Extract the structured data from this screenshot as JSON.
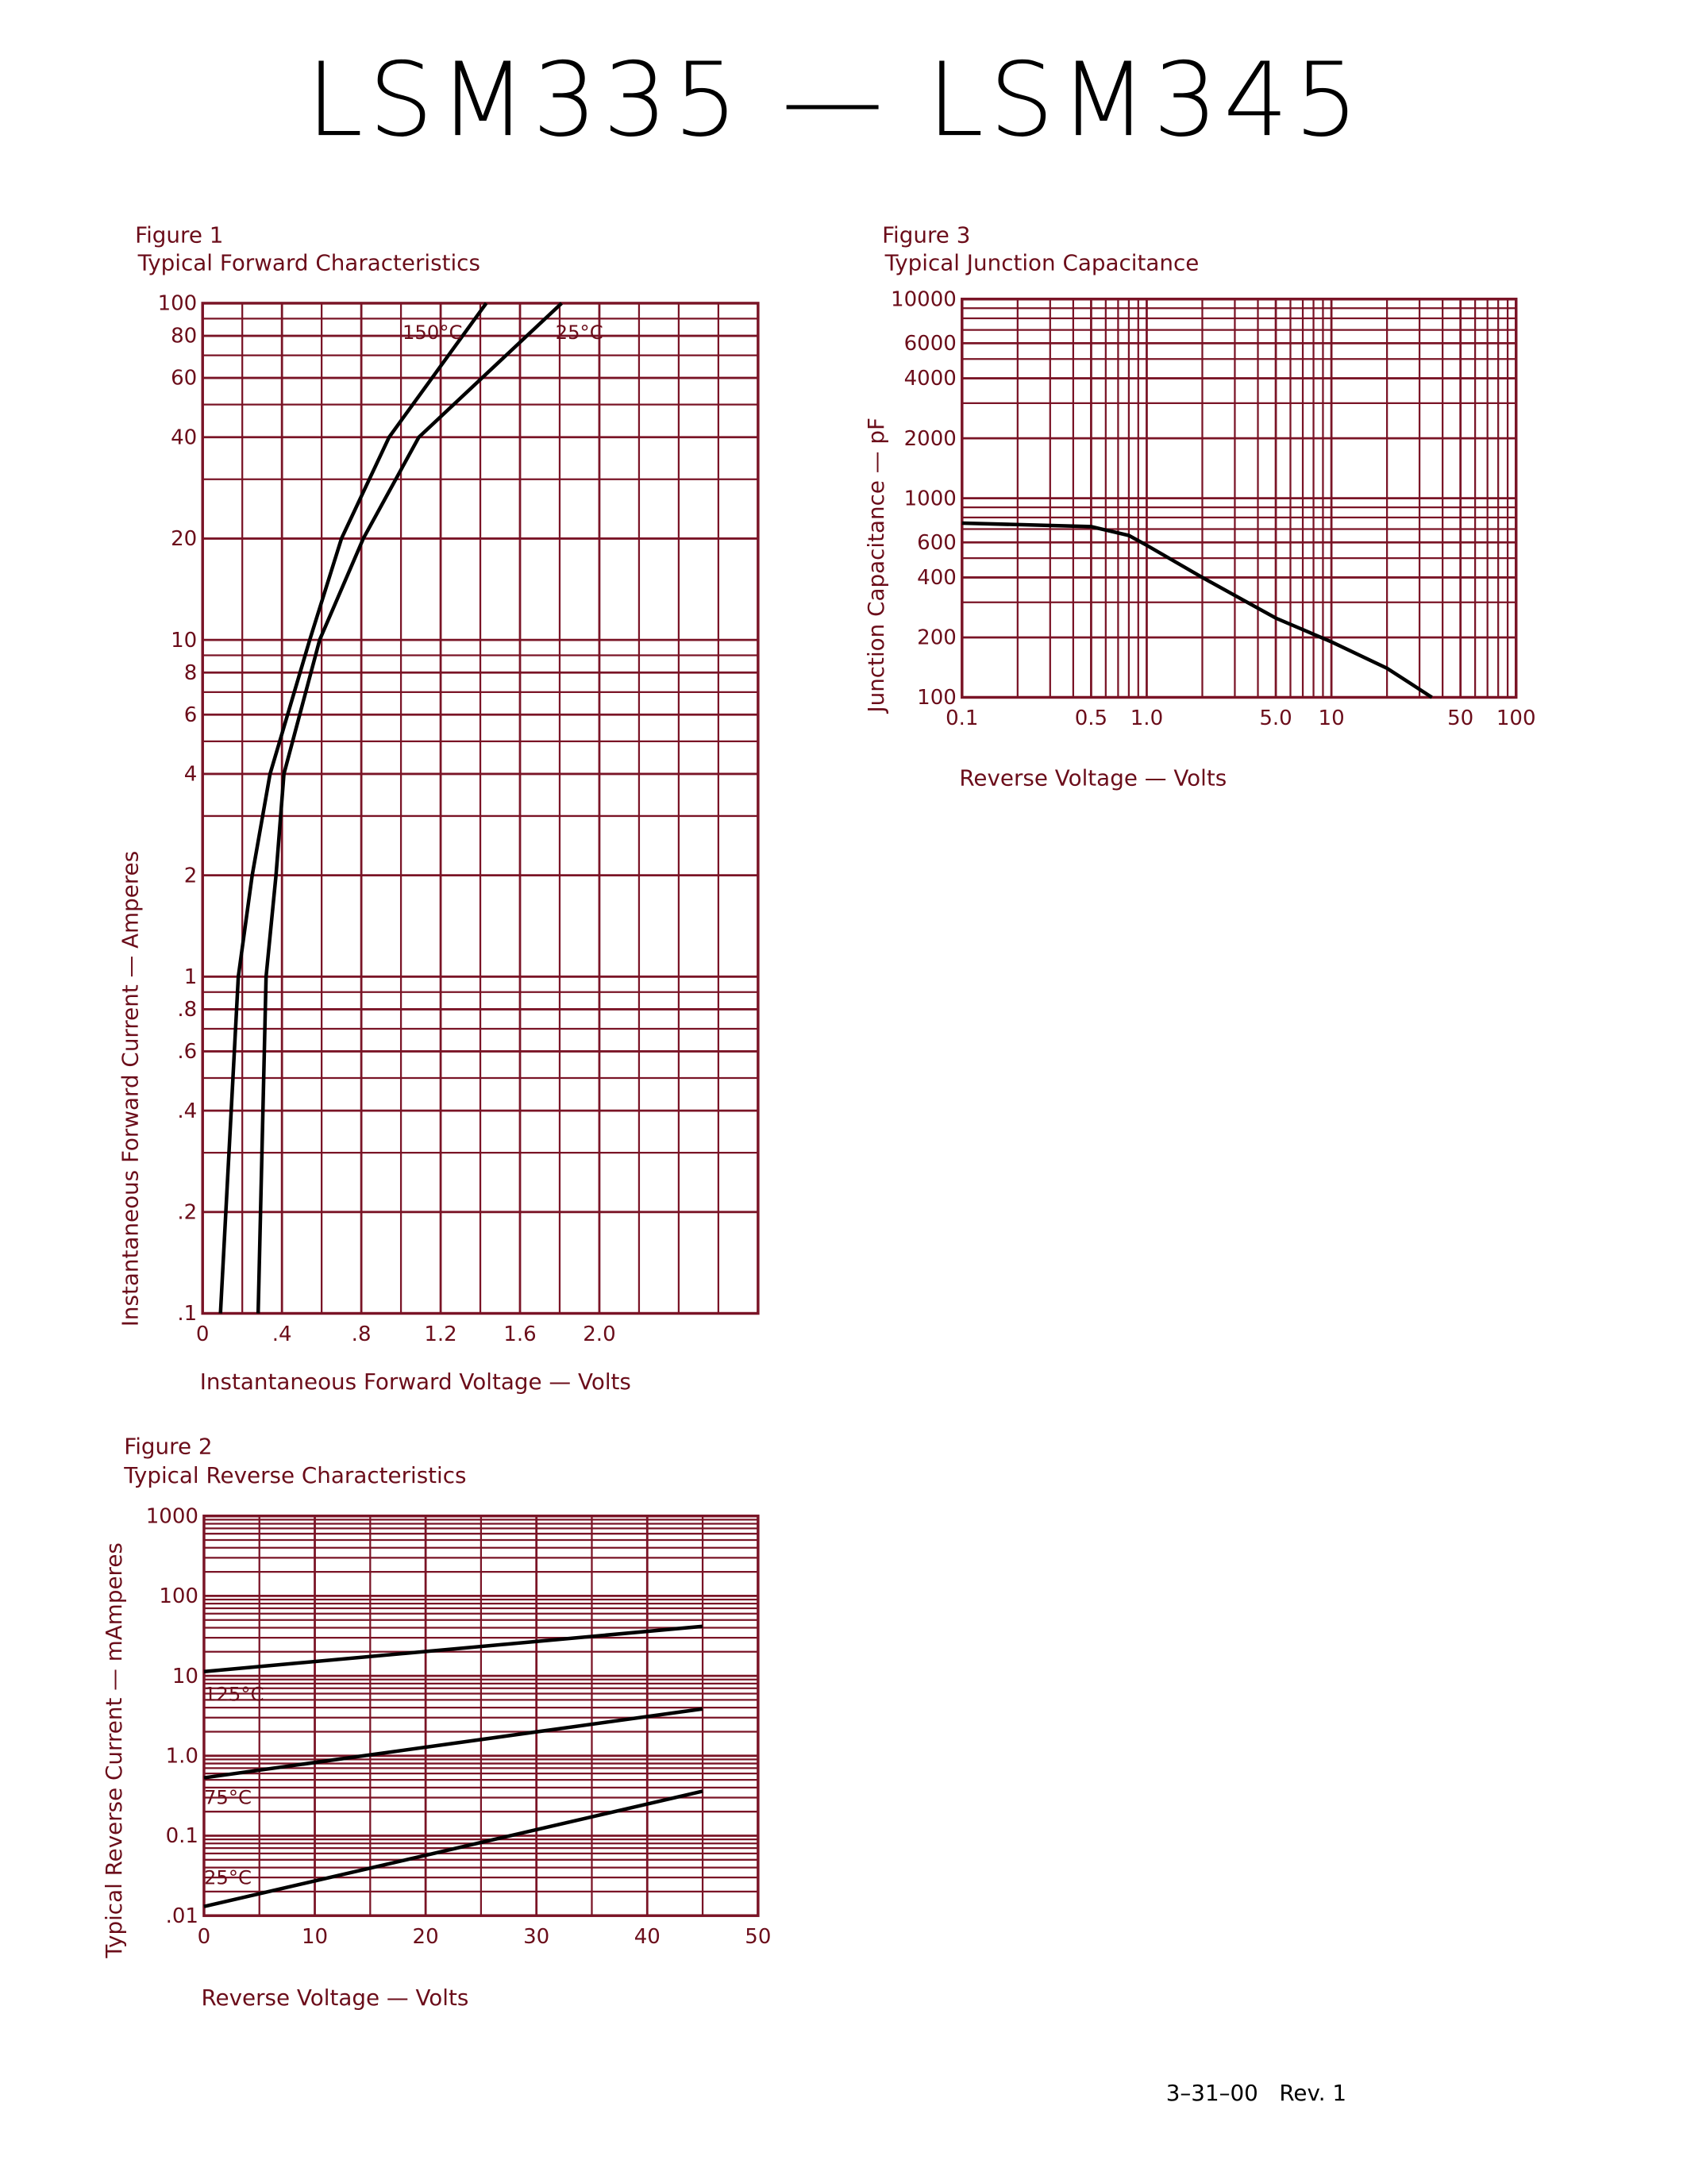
{
  "title": "LSM335 — LSM345",
  "footer": "3–31–00   Rev. 1",
  "chart_data": [
    {
      "type": "line",
      "figure": "Figure 1",
      "title": "Typical Forward Characteristics",
      "x_label": "Instantaneous Forward Voltage — Volts",
      "y_label": "Instantaneous Forward Current — Amperes",
      "xlim": [
        0,
        2.8
      ],
      "ylim": [
        0.1,
        100
      ],
      "ylog": true,
      "xticks": [
        0,
        {
          "value": 0.4,
          "label": ".4"
        },
        {
          "value": 0.8,
          "label": ".8"
        },
        1.2,
        1.6,
        {
          "value": 2.0,
          "label": "2.0"
        }
      ],
      "xminor": [
        0.2,
        0.6,
        1.0,
        1.4,
        1.8,
        2.2,
        2.4,
        2.6,
        2.8
      ],
      "yticks": [
        {
          "value": 0.1,
          "label": ".1"
        },
        {
          "value": 0.2,
          "label": ".2"
        },
        {
          "value": 0.4,
          "label": ".4"
        },
        {
          "value": 0.6,
          "label": ".6"
        },
        {
          "value": 0.8,
          "label": ".8"
        },
        1,
        2,
        4,
        6,
        8,
        10,
        20,
        40,
        60,
        80,
        100
      ],
      "yminor": [
        0.3,
        0.5,
        0.7,
        0.9,
        3,
        5,
        7,
        9,
        30,
        50,
        70,
        90
      ],
      "grid_color": "#7a1426",
      "series": [
        {
          "name": "150°C",
          "color": "#000000",
          "x": [
            0.09,
            0.18,
            0.25,
            0.34,
            0.54,
            0.7,
            0.94,
            1.43
          ],
          "values": [
            0.1,
            1,
            2,
            4,
            10,
            20,
            40,
            100
          ]
        },
        {
          "name": "25°C",
          "color": "#000000",
          "x": [
            0.28,
            0.32,
            0.37,
            0.41,
            0.59,
            0.81,
            1.09,
            1.81
          ],
          "values": [
            0.1,
            1,
            2,
            4,
            10,
            20,
            40,
            100
          ]
        }
      ]
    },
    {
      "type": "line",
      "figure": "Figure 2",
      "title": "Typical Reverse Characteristics",
      "x_label": "Reverse Voltage — Volts",
      "y_label": "Typical Reverse Current — mAmperes",
      "xlim": [
        0,
        50
      ],
      "ylim": [
        0.01,
        1000
      ],
      "ylog": true,
      "xticks": [
        0,
        10,
        20,
        30,
        40,
        50
      ],
      "xminor": [
        5,
        15,
        25,
        35,
        45
      ],
      "yticks": [
        {
          "value": 0.01,
          "label": ".01"
        },
        0.1,
        {
          "value": 1,
          "label": "1.0"
        },
        10,
        100,
        1000
      ],
      "yminor": [
        0.02,
        0.03,
        0.04,
        0.05,
        0.06,
        0.07,
        0.08,
        0.09,
        0.2,
        0.3,
        0.4,
        0.5,
        0.6,
        0.7,
        0.8,
        0.9,
        2,
        3,
        4,
        5,
        6,
        7,
        8,
        9,
        20,
        30,
        40,
        50,
        60,
        70,
        80,
        90,
        200,
        300,
        400,
        500,
        600,
        700,
        800,
        900
      ],
      "grid_color": "#7a1426",
      "series": [
        {
          "name": "125°C",
          "color": "#000000",
          "x": [
            0,
            45
          ],
          "values": [
            11.3,
            41.6
          ]
        },
        {
          "name": "75°C",
          "color": "#000000",
          "x": [
            0,
            45
          ],
          "values": [
            0.53,
            3.86
          ]
        },
        {
          "name": "25°C",
          "color": "#000000",
          "x": [
            0,
            45
          ],
          "values": [
            0.013,
            0.36
          ]
        }
      ]
    },
    {
      "type": "line",
      "figure": "Figure 3",
      "title": "Typical Junction Capacitance",
      "x_label": "Reverse Voltage — Volts",
      "y_label": "Junction Capacitance — pF",
      "xlim": [
        0.1,
        100
      ],
      "ylim": [
        100,
        10000
      ],
      "xlog": true,
      "ylog": true,
      "xticks": [
        0.1,
        0.5,
        {
          "value": 1,
          "label": "1.0"
        },
        {
          "value": 5,
          "label": "5.0"
        },
        10,
        50,
        100
      ],
      "xminor": [
        0.2,
        0.3,
        0.4,
        0.6,
        0.7,
        0.8,
        0.9,
        2,
        3,
        4,
        6,
        7,
        8,
        9,
        20,
        30,
        40,
        60,
        70,
        80,
        90
      ],
      "yticks": [
        100,
        200,
        400,
        600,
        1000,
        2000,
        4000,
        6000,
        10000
      ],
      "yminor": [
        300,
        500,
        700,
        800,
        900,
        3000,
        5000,
        7000,
        8000,
        9000
      ],
      "grid_color": "#7a1426",
      "series": [
        {
          "color": "#000000",
          "x": [
            0.1,
            0.5,
            0.8,
            1,
            2,
            5,
            10,
            20,
            35
          ],
          "values": [
            750,
            720,
            650,
            580,
            400,
            250,
            190,
            140,
            100
          ]
        }
      ]
    }
  ]
}
